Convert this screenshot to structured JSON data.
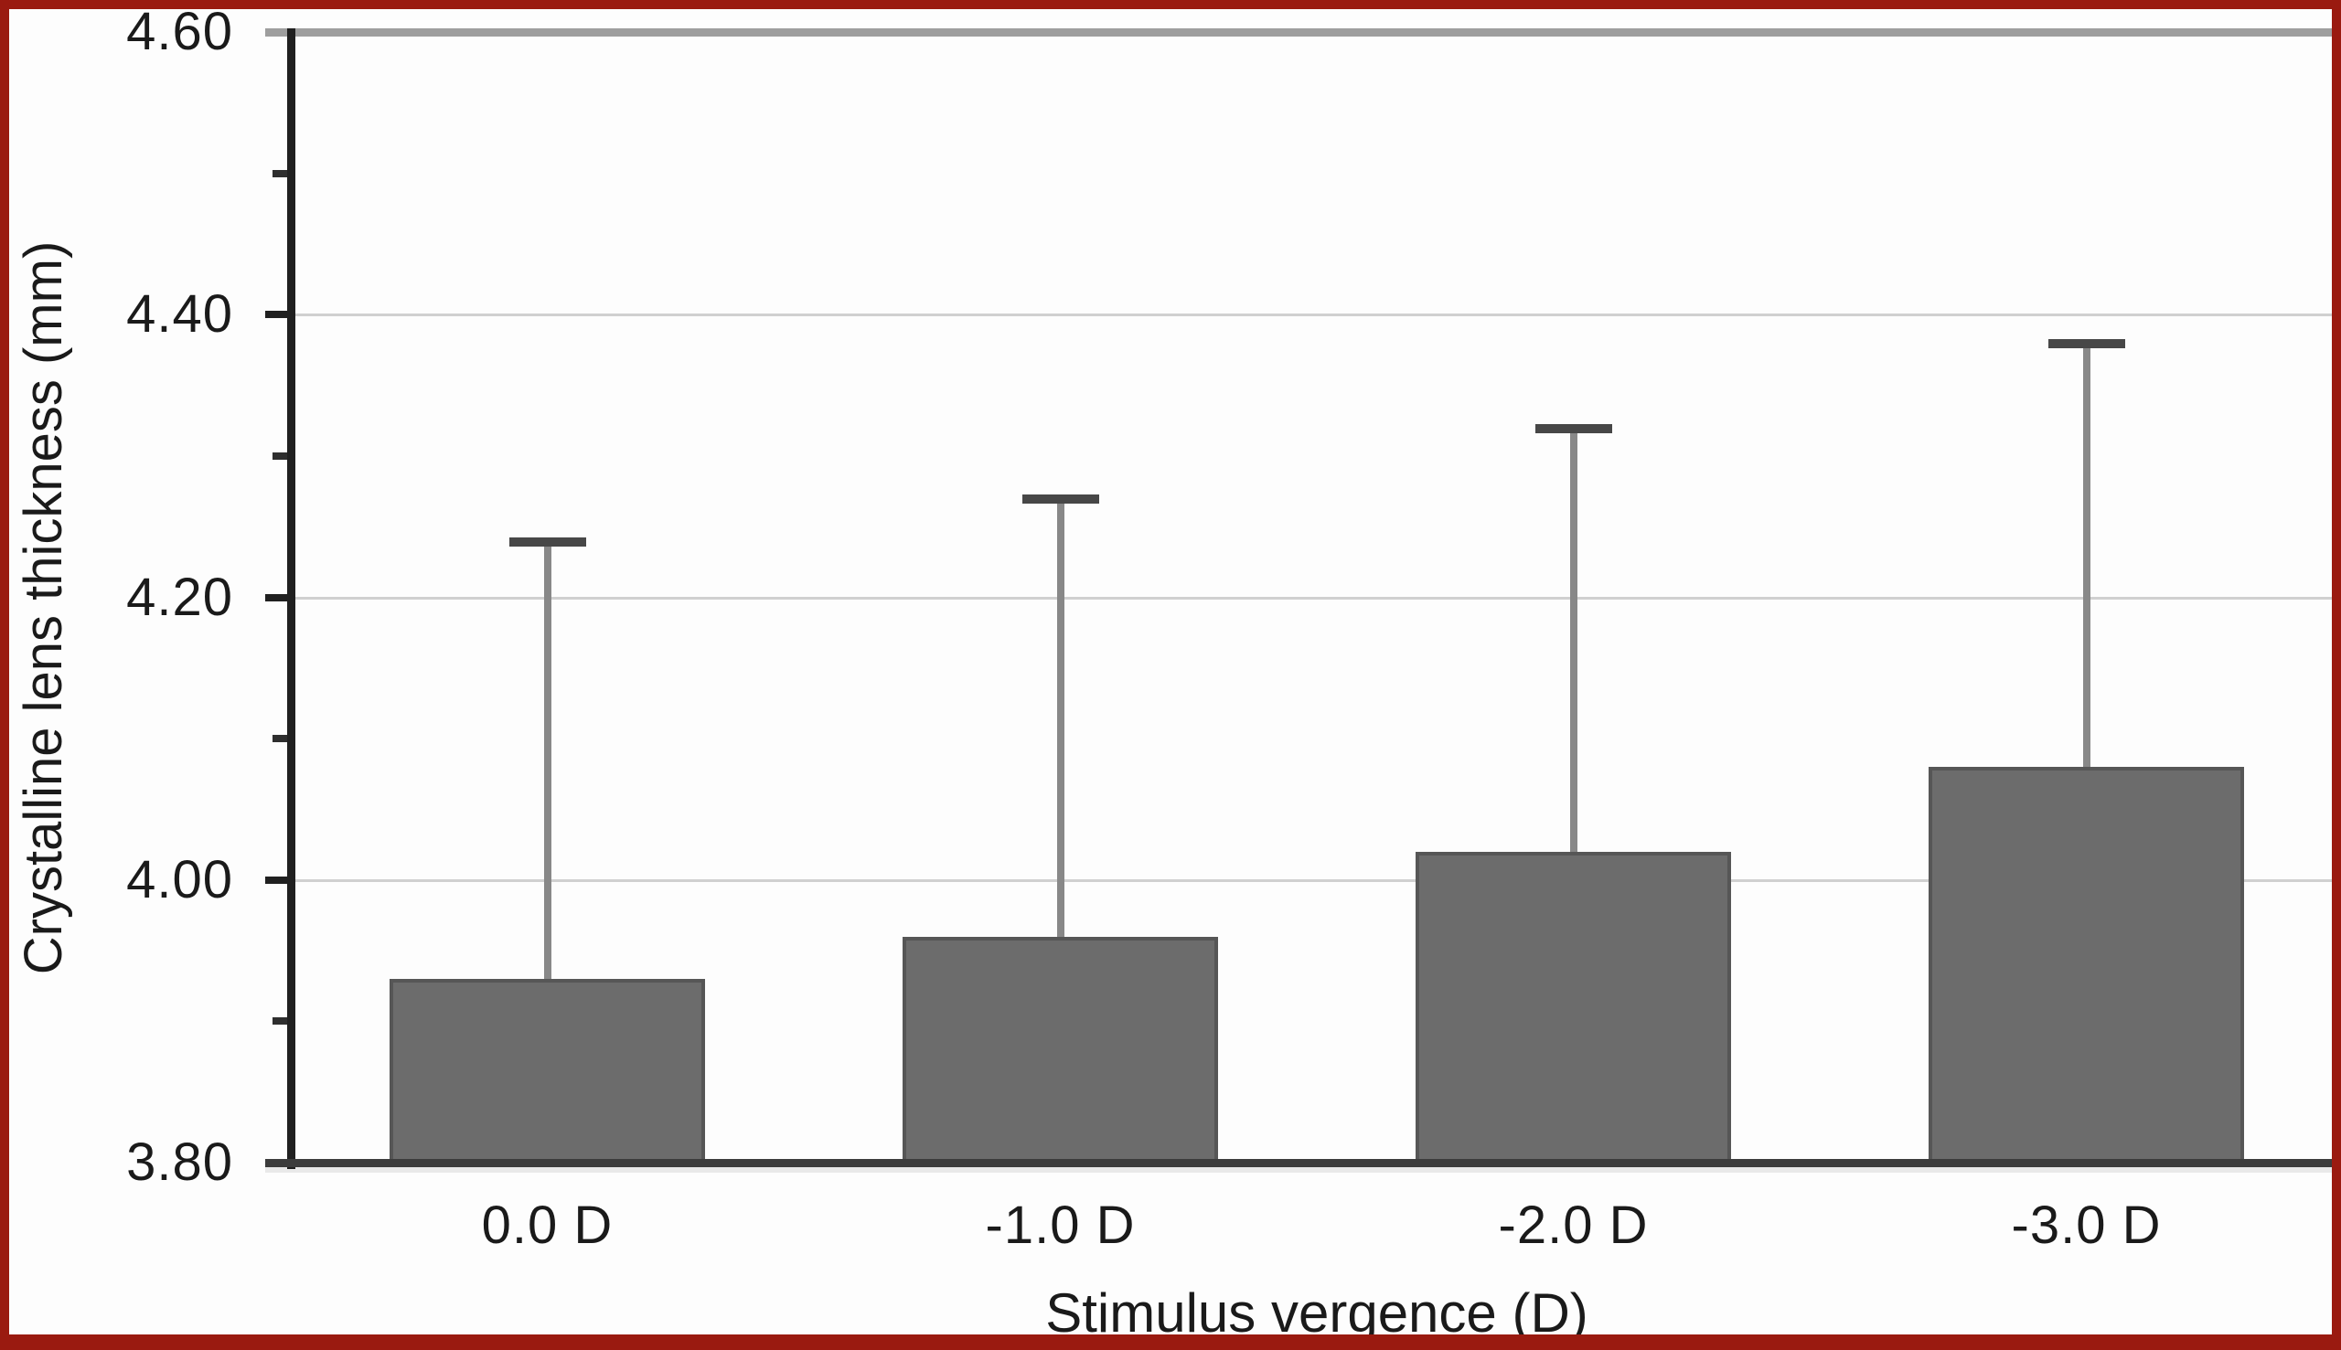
{
  "figure": {
    "border_color": "#9a1a10",
    "background": "#ffffff"
  },
  "chart_data": {
    "type": "bar",
    "title": "",
    "xlabel": "Stimulus vergence (D)",
    "ylabel": "Crystalline lens thickness (mm)",
    "categories": [
      "0.0 D",
      "-1.0 D",
      "-2.0 D",
      "-3.0 D"
    ],
    "values": [
      3.93,
      3.96,
      4.02,
      4.08
    ],
    "error_upper": [
      0.31,
      0.31,
      0.3,
      0.3
    ],
    "whisker_tops": [
      4.24,
      4.27,
      4.32,
      4.38
    ],
    "ylim": [
      3.8,
      4.6
    ],
    "ytick_labels": [
      "4.60",
      "4.40",
      "4.20",
      "4.00",
      "3.80"
    ],
    "ytick_values": [
      4.6,
      4.4,
      4.2,
      4.0,
      3.8
    ],
    "yminor_values": [
      4.5,
      4.3,
      4.1,
      3.9
    ],
    "grid": "horizontal-major",
    "legend": "none",
    "colors": {
      "bar_fill": "#6c6c6c",
      "bar_border": "#565656",
      "whisker": "#888888",
      "whisker_cap": "#474747",
      "gridline": "#d0d0d0",
      "axis": "#202020",
      "text": "#1a1a1a"
    }
  }
}
